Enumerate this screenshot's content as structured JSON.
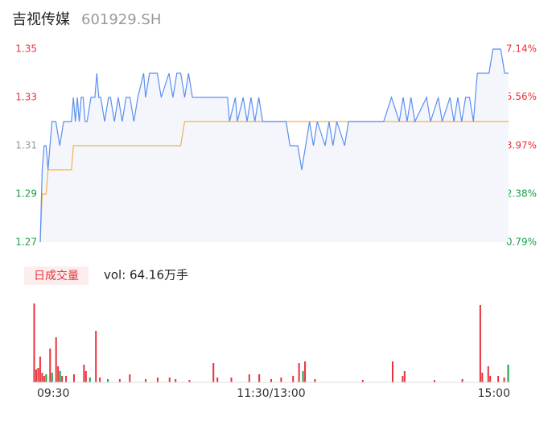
{
  "header": {
    "title": "吉视传媒",
    "subtitle": "601929.SH"
  },
  "chart_data": [
    {
      "type": "line",
      "x": [
        0,
        1,
        2,
        3,
        4,
        5,
        6,
        7,
        8,
        10,
        12,
        14,
        16,
        17,
        18,
        19,
        20,
        21,
        22,
        23,
        24,
        26,
        28,
        29,
        30,
        31,
        33,
        35,
        36,
        38,
        40,
        42,
        44,
        46,
        48,
        50,
        53,
        54,
        56,
        60,
        62,
        66,
        68,
        70,
        72,
        74,
        76,
        78,
        80,
        82,
        96,
        97,
        100,
        101,
        104,
        106,
        108,
        110,
        112,
        114,
        118,
        120,
        126,
        128,
        132,
        134,
        136,
        138,
        140,
        142,
        146,
        148,
        150,
        152,
        156,
        158,
        166,
        176,
        180,
        184,
        186,
        188,
        190,
        192,
        198,
        200,
        204,
        206,
        210,
        212,
        214,
        216,
        218,
        220,
        222,
        224,
        230,
        232,
        236,
        238,
        240
      ],
      "series": [
        {
          "color": "#5b8ff0",
          "values": [
            1.27,
            1.3,
            1.31,
            1.31,
            1.3,
            1.31,
            1.32,
            1.32,
            1.32,
            1.31,
            1.32,
            1.32,
            1.32,
            1.33,
            1.32,
            1.33,
            1.32,
            1.33,
            1.33,
            1.32,
            1.32,
            1.33,
            1.33,
            1.34,
            1.33,
            1.33,
            1.32,
            1.33,
            1.33,
            1.32,
            1.33,
            1.32,
            1.33,
            1.33,
            1.32,
            1.33,
            1.34,
            1.33,
            1.34,
            1.34,
            1.33,
            1.34,
            1.33,
            1.34,
            1.34,
            1.33,
            1.34,
            1.33,
            1.33,
            1.33,
            1.33,
            1.32,
            1.33,
            1.32,
            1.33,
            1.32,
            1.33,
            1.32,
            1.33,
            1.32,
            1.32,
            1.32,
            1.32,
            1.31,
            1.31,
            1.3,
            1.31,
            1.32,
            1.31,
            1.32,
            1.31,
            1.32,
            1.31,
            1.32,
            1.31,
            1.32,
            1.32,
            1.32,
            1.33,
            1.32,
            1.33,
            1.32,
            1.33,
            1.32,
            1.33,
            1.32,
            1.33,
            1.32,
            1.33,
            1.32,
            1.33,
            1.32,
            1.33,
            1.33,
            1.32,
            1.34,
            1.34,
            1.35,
            1.35,
            1.34,
            1.34
          ]
        },
        {
          "color": "#f0b24a",
          "values": [
            1.27,
            1.29,
            1.29,
            1.29,
            1.3,
            1.3,
            1.3,
            1.3,
            1.3,
            1.3,
            1.3,
            1.3,
            1.3,
            1.31,
            1.31,
            1.31,
            1.31,
            1.31,
            1.31,
            1.31,
            1.31,
            1.31,
            1.31,
            1.31,
            1.31,
            1.31,
            1.31,
            1.31,
            1.31,
            1.31,
            1.31,
            1.31,
            1.31,
            1.31,
            1.31,
            1.31,
            1.31,
            1.31,
            1.31,
            1.31,
            1.31,
            1.31,
            1.31,
            1.31,
            1.31,
            1.32,
            1.32,
            1.32,
            1.32,
            1.32,
            1.32,
            1.32,
            1.32,
            1.32,
            1.32,
            1.32,
            1.32,
            1.32,
            1.32,
            1.32,
            1.32,
            1.32,
            1.32,
            1.32,
            1.32,
            1.32,
            1.32,
            1.32,
            1.32,
            1.32,
            1.32,
            1.32,
            1.32,
            1.32,
            1.32,
            1.32,
            1.32,
            1.32,
            1.32,
            1.32,
            1.32,
            1.32,
            1.32,
            1.32,
            1.32,
            1.32,
            1.32,
            1.32,
            1.32,
            1.32,
            1.32,
            1.32,
            1.32,
            1.32,
            1.32,
            1.32,
            1.32,
            1.32,
            1.32,
            1.32,
            1.32
          ]
        }
      ],
      "xlim": [
        0,
        240
      ],
      "ylim": [
        1.27,
        1.35
      ],
      "yticks": [
        1.27,
        1.29,
        1.31,
        1.33,
        1.35
      ],
      "y2lim": [
        0.79,
        7.14
      ],
      "y2ticks": [
        {
          "value": 0.79,
          "label": "0.79%"
        },
        {
          "value": 2.38,
          "label": "2.38%"
        },
        {
          "value": 3.97,
          "label": "3.97%"
        },
        {
          "value": 5.56,
          "label": "5.56%"
        },
        {
          "value": 7.14,
          "label": "7.14%"
        }
      ],
      "up_color": "#e8323c",
      "down_color": "#18a04a",
      "flat_color": "#999999"
    },
    {
      "type": "bar",
      "label": "日成交量",
      "annotation": "vol: 64.16万手",
      "x": [
        1,
        2,
        3,
        4,
        5,
        6,
        7,
        9,
        10,
        12,
        13,
        14,
        15,
        17,
        21,
        26,
        27,
        29,
        32,
        34,
        38,
        44,
        49,
        57,
        63,
        69,
        72,
        79,
        91,
        93,
        100,
        109,
        114,
        120,
        125,
        131,
        134,
        136,
        137,
        142,
        166,
        181,
        186,
        187,
        202,
        216,
        225,
        226,
        229,
        230,
        234,
        237,
        239
      ],
      "values": [
        98,
        16,
        18,
        32,
        12,
        8,
        10,
        42,
        12,
        56,
        20,
        14,
        8,
        8,
        10,
        22,
        14,
        6,
        64,
        6,
        4,
        4,
        10,
        4,
        6,
        6,
        4,
        3,
        24,
        6,
        6,
        10,
        10,
        4,
        6,
        8,
        24,
        14,
        26,
        4,
        3,
        26,
        8,
        14,
        3,
        4,
        96,
        12,
        20,
        8,
        8,
        6,
        22
      ],
      "colors": [
        "#e8323c",
        "#e8323c",
        "#e8323c",
        "#e8323c",
        "#e8323c",
        "#e8323c",
        "#18a04a",
        "#e8323c",
        "#18a04a",
        "#e8323c",
        "#e8323c",
        "#18a04a",
        "#e8323c",
        "#e8323c",
        "#e8323c",
        "#e8323c",
        "#e8323c",
        "#18a04a",
        "#e8323c",
        "#e8323c",
        "#18a04a",
        "#e8323c",
        "#e8323c",
        "#e8323c",
        "#e8323c",
        "#e8323c",
        "#e8323c",
        "#e8323c",
        "#e8323c",
        "#e8323c",
        "#e8323c",
        "#e8323c",
        "#e8323c",
        "#e8323c",
        "#e8323c",
        "#e8323c",
        "#e8323c",
        "#18a04a",
        "#e8323c",
        "#e8323c",
        "#e8323c",
        "#e8323c",
        "#e8323c",
        "#e8323c",
        "#e8323c",
        "#e8323c",
        "#e8323c",
        "#e8323c",
        "#e8323c",
        "#e8323c",
        "#e8323c",
        "#e8323c",
        "#18a04a"
      ],
      "xlim": [
        0,
        240
      ],
      "ylim": [
        0,
        100
      ],
      "xticks": [
        {
          "value": 0,
          "label": "09:30"
        },
        {
          "value": 120,
          "label": "11:30/13:00"
        },
        {
          "value": 240,
          "label": "15:00"
        }
      ]
    }
  ]
}
